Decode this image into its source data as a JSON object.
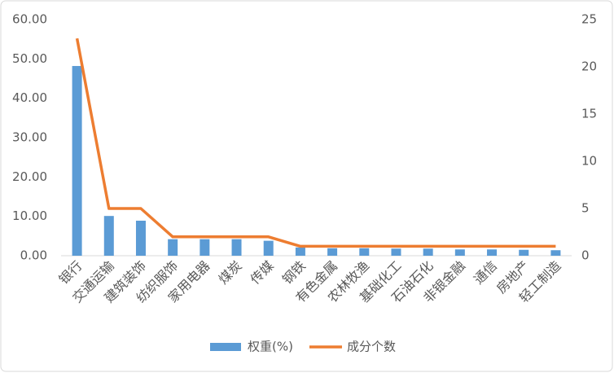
{
  "chart_data": {
    "type": "bar",
    "categories": [
      "银行",
      "交通运输",
      "建筑装饰",
      "纺织服饰",
      "家用电器",
      "煤炭",
      "传媒",
      "钢铁",
      "有色金属",
      "农林牧渔",
      "基础化工",
      "石油石化",
      "非银金融",
      "通信",
      "房地产",
      "轻工制造"
    ],
    "series": [
      {
        "name": "权重(%)",
        "type": "bar",
        "color": "#5b9bd5",
        "values": [
          48.2,
          10.1,
          8.9,
          4.2,
          4.2,
          4.2,
          3.8,
          2.1,
          1.9,
          1.9,
          1.8,
          1.8,
          1.6,
          1.6,
          1.5,
          1.4
        ]
      },
      {
        "name": "成分个数",
        "type": "line",
        "color": "#ed7d31",
        "axis": "y2",
        "values": [
          23,
          5,
          5,
          2,
          2,
          2,
          2,
          1,
          1,
          1,
          1,
          1,
          1,
          1,
          1,
          1
        ]
      }
    ],
    "ylim": [
      0,
      60
    ],
    "yticks": [
      {
        "value": 0,
        "label": "0.00"
      },
      {
        "value": 10,
        "label": "10.00"
      },
      {
        "value": 20,
        "label": "20.00"
      },
      {
        "value": 30,
        "label": "30.00"
      },
      {
        "value": 40,
        "label": "40.00"
      },
      {
        "value": 50,
        "label": "50.00"
      },
      {
        "value": 60,
        "label": "60.00"
      }
    ],
    "y2lim": [
      0,
      25
    ],
    "y2ticks": [
      0,
      5,
      10,
      15,
      20,
      25
    ],
    "grid": false,
    "legend": "bottom"
  }
}
